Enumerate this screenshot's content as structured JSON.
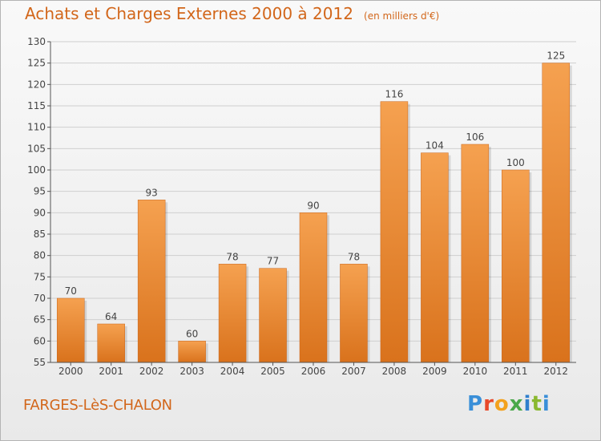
{
  "header": {
    "title": "Achats et Charges Externes 2000 à 2012",
    "subtitle": "(en milliers d'€)"
  },
  "footer": {
    "place": "FARGES-LèS-CHALON",
    "logo_text": "Proxiti"
  },
  "colors": {
    "bar_top": "#f5a150",
    "bar_bottom": "#d9721c",
    "accent": "#d2661a",
    "grid": "#cfcfcf",
    "axis": "#555555"
  },
  "chart_data": {
    "type": "bar",
    "categories": [
      "2000",
      "2001",
      "2002",
      "2003",
      "2004",
      "2005",
      "2006",
      "2007",
      "2008",
      "2009",
      "2010",
      "2011",
      "2012"
    ],
    "values": [
      70,
      64,
      93,
      60,
      78,
      77,
      90,
      78,
      116,
      104,
      106,
      100,
      125
    ],
    "ylim": [
      55,
      130
    ],
    "yticks": [
      55,
      60,
      65,
      70,
      75,
      80,
      85,
      90,
      95,
      100,
      105,
      110,
      115,
      120,
      125,
      130
    ],
    "grid": true,
    "xlabel": "",
    "ylabel": ""
  }
}
